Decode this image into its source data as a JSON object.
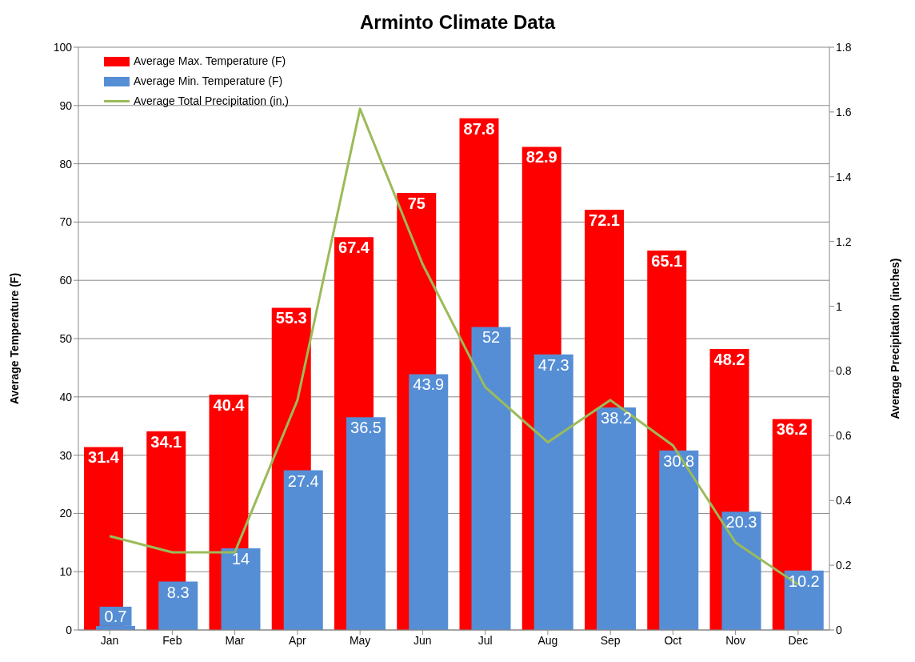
{
  "chart_data": {
    "type": "bar",
    "title": "Arminto Climate Data",
    "ylabel": "Average Temperature (F)",
    "y2label": "Average Precipitation (inches)",
    "categories": [
      "Jan",
      "Feb",
      "Mar",
      "Apr",
      "May",
      "Jun",
      "Jul",
      "Aug",
      "Sep",
      "Oct",
      "Nov",
      "Dec"
    ],
    "series": [
      {
        "name": "Average Max. Temperature (F)",
        "color": "#ff0000",
        "values": [
          31.4,
          34.1,
          40.4,
          55.3,
          67.4,
          75,
          87.8,
          82.9,
          72.1,
          65.1,
          48.2,
          36.2
        ],
        "value_labels": [
          "31.4",
          "34.1",
          "40.4",
          "55.3",
          "67.4",
          "75",
          "87.8",
          "82.9",
          "72.1",
          "65.1",
          "48.2",
          "36.2"
        ]
      },
      {
        "name": "Average Min. Temperature (F)",
        "color": "#558ed5",
        "values": [
          0.7,
          8.3,
          14,
          27.4,
          36.5,
          43.9,
          52,
          47.3,
          38.2,
          30.8,
          20.3,
          10.2
        ],
        "value_labels": [
          "0.7",
          "8.3",
          "14",
          "27.4",
          "36.5",
          "43.9",
          "52",
          "47.3",
          "38.2",
          "30.8",
          "20.3",
          "10.2"
        ]
      },
      {
        "name": "Average Total Precipitation (in.)",
        "type": "line",
        "axis": "y2",
        "color": "#9bbb59",
        "marker": "none",
        "values": [
          0.29,
          0.24,
          0.24,
          0.71,
          1.61,
          1.13,
          0.75,
          0.58,
          0.71,
          0.57,
          0.27,
          0.14
        ]
      }
    ],
    "ylim": [
      0,
      100
    ],
    "yticks": [
      0,
      10,
      20,
      30,
      40,
      50,
      60,
      70,
      80,
      90,
      100
    ],
    "y2lim": [
      0,
      1.8
    ],
    "y2ticks": [
      0,
      0.2,
      0.4,
      0.6,
      0.8,
      1,
      1.2,
      1.4,
      1.6,
      1.8
    ],
    "grid": "y",
    "legend": "top left"
  }
}
